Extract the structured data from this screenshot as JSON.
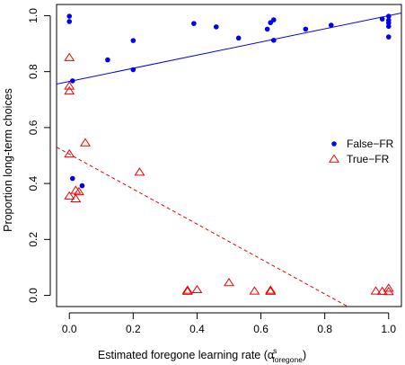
{
  "chart_data": {
    "type": "scatter",
    "xlabel": {
      "prefix": "Estimated foregone learning rate (",
      "symbol": "α",
      "superscript": "s",
      "subscript": "foregone",
      "suffix": ")"
    },
    "ylabel": "Proportion long-term choices",
    "xlim": [
      -0.04,
      1.04
    ],
    "ylim": [
      -0.04,
      1.04
    ],
    "xticks": [
      0.0,
      0.2,
      0.4,
      0.6,
      0.8,
      1.0
    ],
    "yticks": [
      0.0,
      0.2,
      0.4,
      0.6,
      0.8,
      1.0
    ],
    "xtick_labels": [
      "0.0",
      "0.2",
      "0.4",
      "0.6",
      "0.8",
      "1.0"
    ],
    "ytick_labels": [
      "0.0",
      "0.2",
      "0.4",
      "0.6",
      "0.8",
      "1.0"
    ],
    "legend_position": "right",
    "grid": false,
    "series": [
      {
        "name": "False−FR",
        "marker": "filled-circle",
        "color": "#0000ee",
        "points": [
          [
            0.0,
            0.998
          ],
          [
            0.0,
            0.979
          ],
          [
            0.01,
            0.767
          ],
          [
            0.01,
            0.418
          ],
          [
            0.04,
            0.392
          ],
          [
            0.12,
            0.842
          ],
          [
            0.2,
            0.911
          ],
          [
            0.2,
            0.807
          ],
          [
            0.39,
            0.972
          ],
          [
            0.46,
            0.96
          ],
          [
            0.53,
            0.92
          ],
          [
            0.62,
            0.952
          ],
          [
            0.63,
            0.975
          ],
          [
            0.64,
            0.985
          ],
          [
            0.64,
            0.912
          ],
          [
            0.74,
            0.952
          ],
          [
            0.82,
            0.966
          ],
          [
            0.98,
            0.988
          ],
          [
            1.0,
            0.998
          ],
          [
            1.0,
            0.984
          ],
          [
            1.0,
            0.975
          ],
          [
            1.0,
            0.962
          ],
          [
            1.0,
            0.924
          ]
        ],
        "fit_line": {
          "intercept": 0.765,
          "slope": 0.235
        }
      },
      {
        "name": "True−FR",
        "marker": "open-triangle",
        "color": "#ee0000",
        "points": [
          [
            0.0,
            0.85
          ],
          [
            0.0,
            0.748
          ],
          [
            0.0,
            0.73
          ],
          [
            0.0,
            0.505
          ],
          [
            0.0,
            0.355
          ],
          [
            0.02,
            0.345
          ],
          [
            0.02,
            0.375
          ],
          [
            0.03,
            0.37
          ],
          [
            0.05,
            0.545
          ],
          [
            0.22,
            0.44
          ],
          [
            0.37,
            0.018
          ],
          [
            0.37,
            0.014
          ],
          [
            0.4,
            0.02
          ],
          [
            0.5,
            0.045
          ],
          [
            0.58,
            0.015
          ],
          [
            0.63,
            0.018
          ],
          [
            0.63,
            0.014
          ],
          [
            0.96,
            0.015
          ],
          [
            0.98,
            0.014
          ],
          [
            1.0,
            0.025
          ],
          [
            1.0,
            0.013
          ]
        ],
        "fit_line": {
          "intercept": 0.505,
          "slope": -0.625,
          "style": "dashed"
        }
      }
    ]
  }
}
